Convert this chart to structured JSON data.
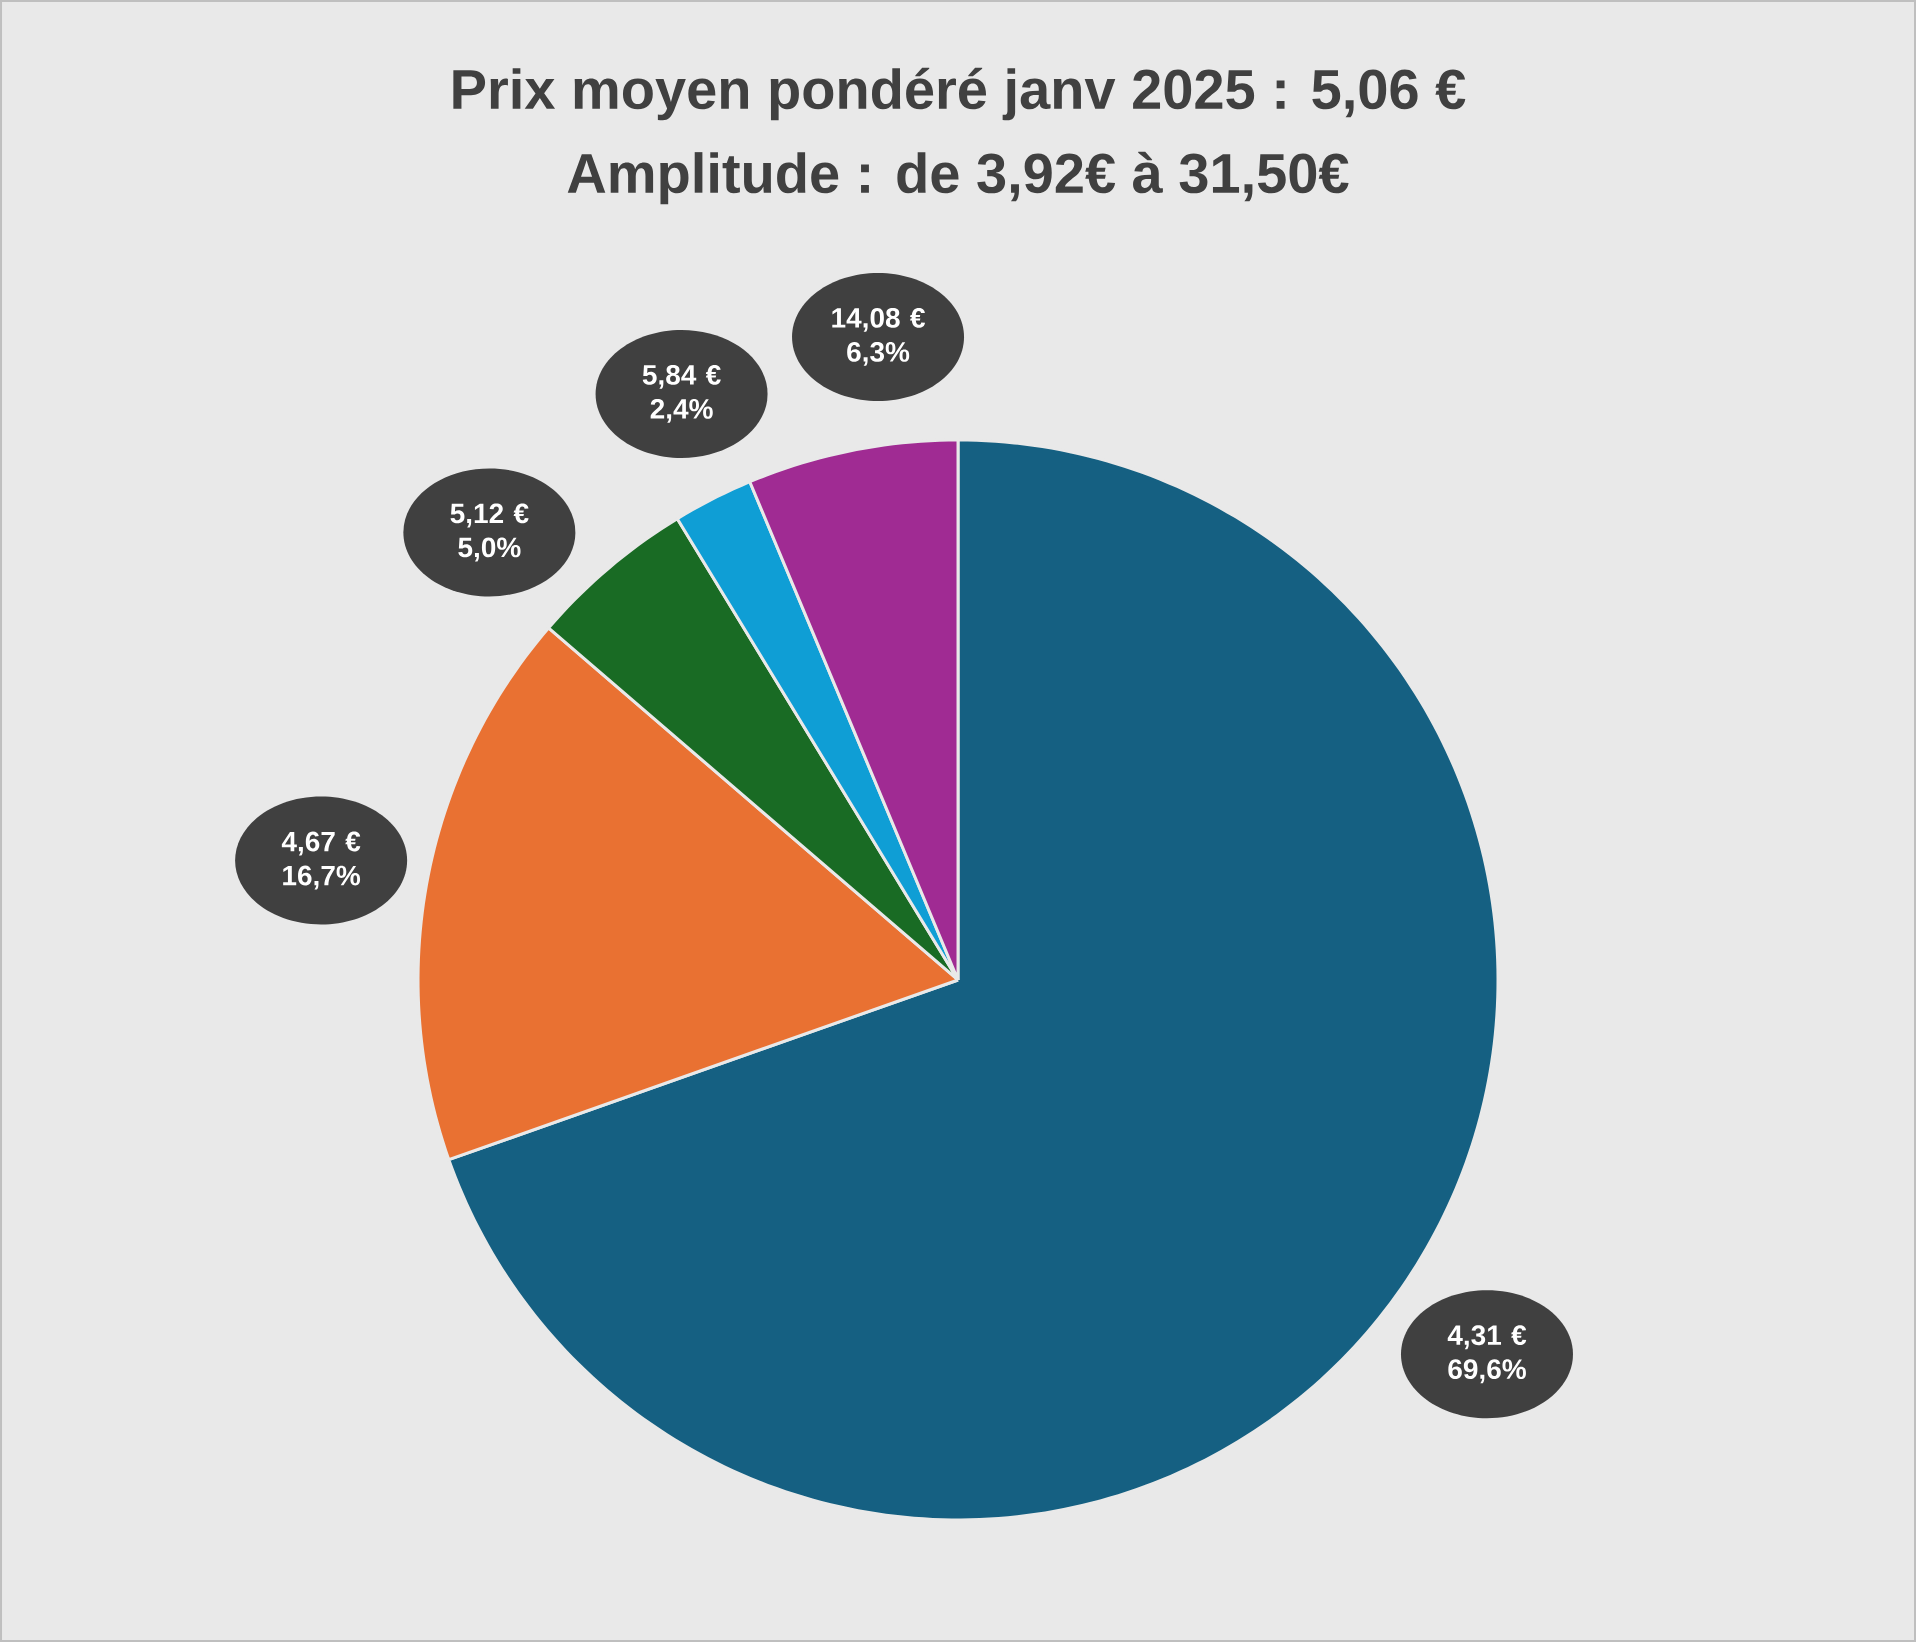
{
  "chart_data": {
    "type": "pie",
    "title": "Prix moyen pondéré janv 2025 : 5,06 €",
    "subtitle": "Amplitude : de 3,92€ à 31,50€",
    "categories": [
      null,
      null,
      null,
      null,
      null
    ],
    "values": [
      69.6,
      16.7,
      5.0,
      2.4,
      6.3
    ],
    "colors": [
      "#156082",
      "#e97132",
      "#196b24",
      "#0f9ed5",
      "#a02b93"
    ],
    "value_labels": [
      "4,31 € 69,6%",
      "4,67 € 16,7%",
      "5,12 € 5,0%",
      "5,84 € 2,4%",
      "14,08 € 6,3%"
    ]
  }
}
